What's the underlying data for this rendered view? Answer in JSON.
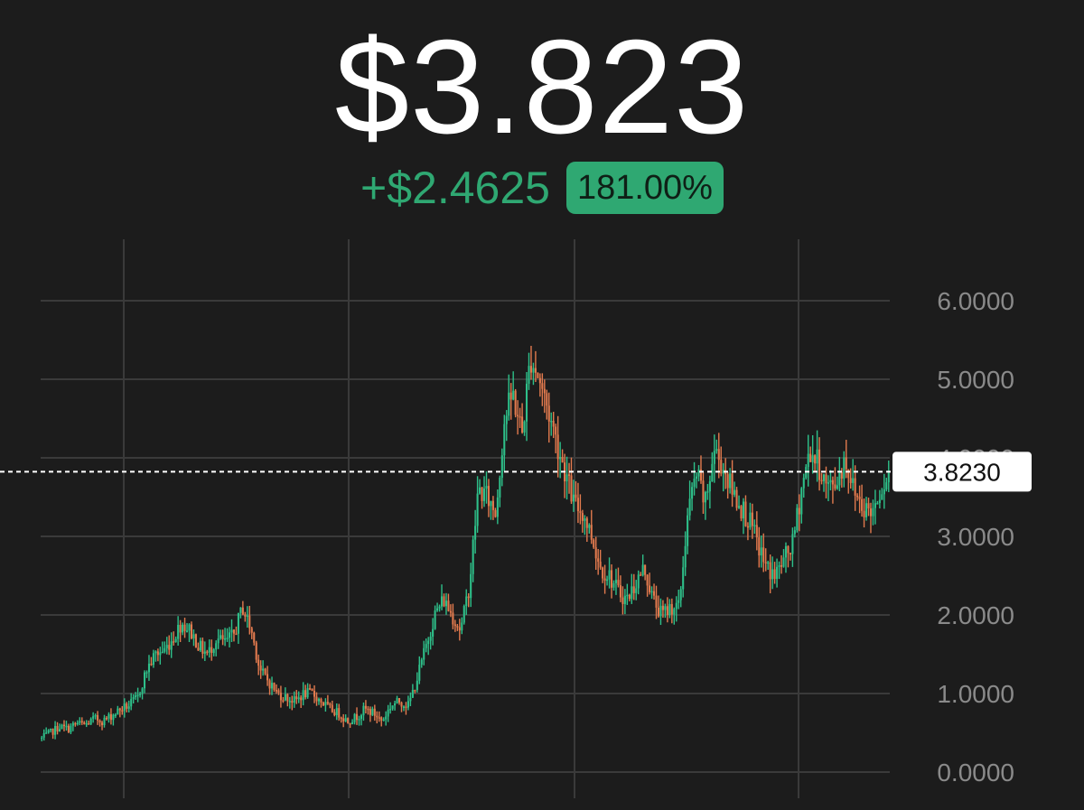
{
  "header": {
    "price": "$3.823",
    "change_abs": "+$2.4625",
    "change_pct": "181.00%"
  },
  "colors": {
    "background": "#1c1c1c",
    "up": "#2fa872",
    "up_candle": "#2ec08a",
    "down_candle": "#e27a4e",
    "grid": "#3a3a3a",
    "axis_text": "#8a8a8a"
  },
  "chart_data": {
    "type": "candlestick",
    "ylim": [
      0,
      6.5
    ],
    "yticks": [
      {
        "value": 0,
        "label": "0.0000"
      },
      {
        "value": 1,
        "label": "1.0000"
      },
      {
        "value": 2,
        "label": "2.0000"
      },
      {
        "value": 3,
        "label": "3.0000"
      },
      {
        "value": 4,
        "label": "4.0000"
      },
      {
        "value": 5,
        "label": "5.0000"
      },
      {
        "value": 6,
        "label": "6.0000"
      }
    ],
    "vertical_gridlines": 4,
    "current_value": 3.823,
    "current_label": "3.8230",
    "series_path": [
      0.43,
      0.5,
      0.58,
      0.55,
      0.62,
      0.6,
      0.68,
      0.65,
      0.72,
      0.8,
      0.85,
      0.95,
      1.3,
      1.5,
      1.55,
      1.7,
      1.9,
      1.8,
      1.6,
      1.5,
      1.7,
      1.65,
      1.75,
      2.1,
      1.8,
      1.3,
      1.15,
      1.0,
      0.95,
      0.9,
      1.0,
      1.0,
      0.9,
      0.8,
      0.75,
      0.65,
      0.7,
      0.8,
      0.75,
      0.65,
      0.85,
      0.9,
      0.85,
      1.2,
      1.6,
      2.0,
      2.2,
      2.0,
      1.8,
      2.4,
      3.6,
      3.5,
      3.3,
      4.5,
      4.8,
      4.3,
      5.3,
      5.0,
      4.6,
      4.2,
      3.8,
      3.4,
      3.3,
      3.0,
      2.6,
      2.5,
      2.3,
      2.2,
      2.4,
      2.6,
      2.2,
      2.0,
      2.1,
      2.1,
      3.3,
      3.8,
      3.4,
      4.1,
      3.9,
      3.6,
      3.4,
      3.2,
      2.9,
      2.6,
      2.5,
      2.7,
      2.9,
      3.6,
      4.1,
      3.9,
      3.6,
      3.7,
      4.0,
      3.6,
      3.4,
      3.3,
      3.6,
      3.823
    ]
  }
}
